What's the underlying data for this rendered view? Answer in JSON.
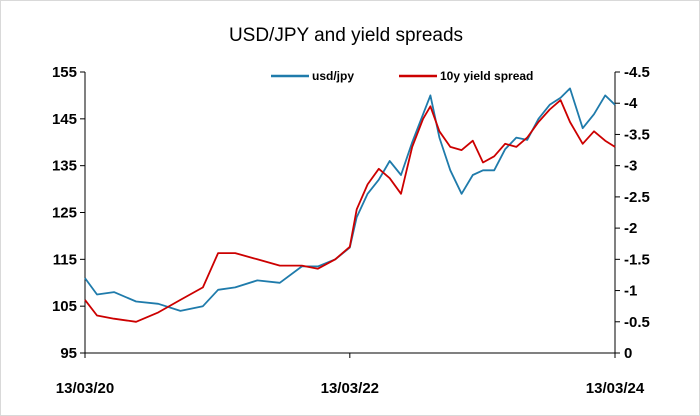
{
  "chart_data": {
    "type": "line",
    "title": "USD/JPY and yield spreads",
    "xlabel": "",
    "x_tick_labels": [
      "13/03/20",
      "13/03/22",
      "13/03/24"
    ],
    "x_range": [
      "2020-03-13",
      "2024-03-13"
    ],
    "y_left": {
      "label": "",
      "ylim": [
        95,
        155
      ],
      "ticks": [
        95,
        105,
        115,
        125,
        135,
        145,
        155
      ]
    },
    "y_right": {
      "label": "",
      "ylim": [
        0,
        -4.5
      ],
      "inverted": true,
      "ticks": [
        "0",
        "-0.5",
        "-1",
        "-1.5",
        "-2",
        "-2.5",
        "-3",
        "-3.5",
        "-4",
        "-4.5"
      ]
    },
    "grid": false,
    "legend_position": "top",
    "series": [
      {
        "name": "usd/jpy",
        "axis": "left",
        "color": "#1f7bab",
        "x": [
          "2020-03-13",
          "2020-04-15",
          "2020-06-01",
          "2020-08-01",
          "2020-10-01",
          "2020-12-01",
          "2021-02-01",
          "2021-03-15",
          "2021-05-01",
          "2021-07-01",
          "2021-09-01",
          "2021-11-01",
          "2021-12-15",
          "2022-02-01",
          "2022-03-13",
          "2022-04-01",
          "2022-05-01",
          "2022-06-01",
          "2022-07-01",
          "2022-08-01",
          "2022-09-01",
          "2022-10-01",
          "2022-10-21",
          "2022-11-15",
          "2022-12-15",
          "2023-01-15",
          "2023-02-15",
          "2023-03-15",
          "2023-04-15",
          "2023-05-15",
          "2023-06-15",
          "2023-07-15",
          "2023-08-15",
          "2023-09-15",
          "2023-10-15",
          "2023-11-10",
          "2023-12-15",
          "2024-01-15",
          "2024-02-15",
          "2024-03-13"
        ],
        "values": [
          111,
          107.5,
          108,
          106,
          105.5,
          104,
          105,
          108.5,
          109,
          110.5,
          110,
          113.5,
          113.5,
          115,
          117.5,
          124,
          129,
          132,
          136,
          133,
          140,
          146,
          150,
          141,
          134,
          129,
          133,
          134,
          134,
          138.5,
          141,
          140.5,
          145,
          148,
          149.5,
          151.5,
          143,
          146,
          150,
          148
        ]
      },
      {
        "name": "10y yield spread",
        "axis": "right",
        "color": "#cc0000",
        "x": [
          "2020-03-13",
          "2020-04-15",
          "2020-06-01",
          "2020-08-01",
          "2020-10-01",
          "2020-12-01",
          "2021-02-01",
          "2021-03-15",
          "2021-05-01",
          "2021-07-01",
          "2021-09-01",
          "2021-11-01",
          "2021-12-15",
          "2022-02-01",
          "2022-03-13",
          "2022-04-01",
          "2022-05-01",
          "2022-06-01",
          "2022-07-01",
          "2022-08-01",
          "2022-09-01",
          "2022-10-01",
          "2022-10-21",
          "2022-11-15",
          "2022-12-15",
          "2023-01-15",
          "2023-02-15",
          "2023-03-15",
          "2023-04-15",
          "2023-05-15",
          "2023-06-15",
          "2023-07-15",
          "2023-08-15",
          "2023-09-15",
          "2023-10-15",
          "2023-11-10",
          "2023-12-15",
          "2024-01-15",
          "2024-02-15",
          "2024-03-13"
        ],
        "values": [
          -0.85,
          -0.6,
          -0.55,
          -0.5,
          -0.65,
          -0.85,
          -1.05,
          -1.6,
          -1.6,
          -1.5,
          -1.4,
          -1.4,
          -1.35,
          -1.5,
          -1.7,
          -2.3,
          -2.7,
          -2.95,
          -2.8,
          -2.55,
          -3.3,
          -3.75,
          -3.95,
          -3.55,
          -3.3,
          -3.25,
          -3.4,
          -3.05,
          -3.15,
          -3.35,
          -3.3,
          -3.45,
          -3.7,
          -3.9,
          -4.05,
          -3.7,
          -3.35,
          -3.55,
          -3.4,
          -3.3
        ]
      }
    ]
  }
}
